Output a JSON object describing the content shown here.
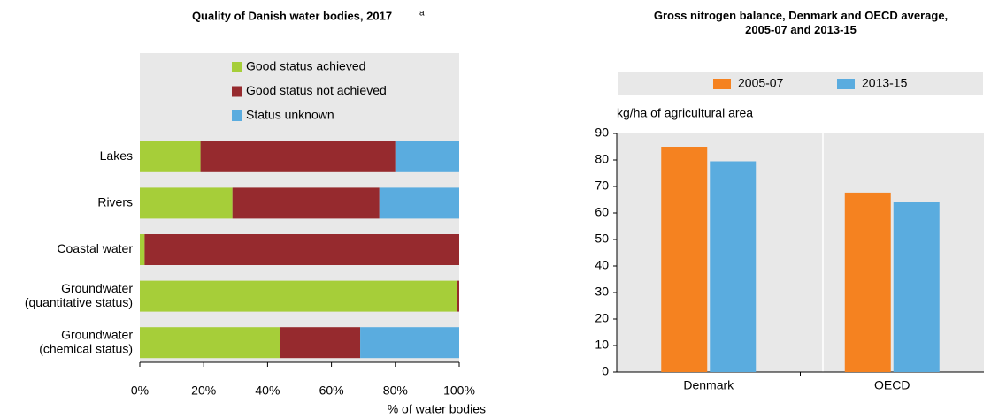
{
  "chart_data": [
    {
      "type": "bar",
      "orientation": "horizontal",
      "stacked": true,
      "title": "Quality of Danish water bodies, 2017",
      "title_superscript": "a",
      "x_label": "% of water bodies",
      "categories": [
        "Lakes",
        "Rivers",
        "Coastal water",
        "Groundwater\n(quantitative status)",
        "Groundwater\n(chemical status)"
      ],
      "series": [
        {
          "name": "Good status achieved",
          "color": "#a6ce39",
          "values": [
            19,
            29,
            1.5,
            99.3,
            44
          ]
        },
        {
          "name": "Good status not achieved",
          "color": "#962a2e",
          "values": [
            61,
            46,
            98.5,
            0.7,
            25
          ]
        },
        {
          "name": "Status unknown",
          "color": "#5aacdf",
          "values": [
            20,
            25,
            0,
            0,
            31
          ]
        }
      ],
      "xlim": [
        0,
        100
      ],
      "xticks": [
        {
          "value": 0,
          "label": "0%"
        },
        {
          "value": 20,
          "label": "20%"
        },
        {
          "value": 40,
          "label": "40%"
        },
        {
          "value": 60,
          "label": "60%"
        },
        {
          "value": 80,
          "label": "80%"
        },
        {
          "value": 100,
          "label": "100%"
        }
      ]
    },
    {
      "type": "bar",
      "title": "Gross nitrogen balance, Denmark and OECD average,\n2005-07 and 2013-15",
      "y_label": "kg/ha of agricultural area",
      "categories": [
        "Denmark",
        "OECD"
      ],
      "series": [
        {
          "name": "2005-07",
          "color": "#f58220",
          "values": [
            85,
            67.7
          ]
        },
        {
          "name": "2013-15",
          "color": "#5aacdf",
          "values": [
            79.5,
            64
          ]
        }
      ],
      "ylim": [
        0,
        90
      ],
      "yticks": [
        0,
        10,
        20,
        30,
        40,
        50,
        60,
        70,
        80,
        90
      ]
    }
  ]
}
